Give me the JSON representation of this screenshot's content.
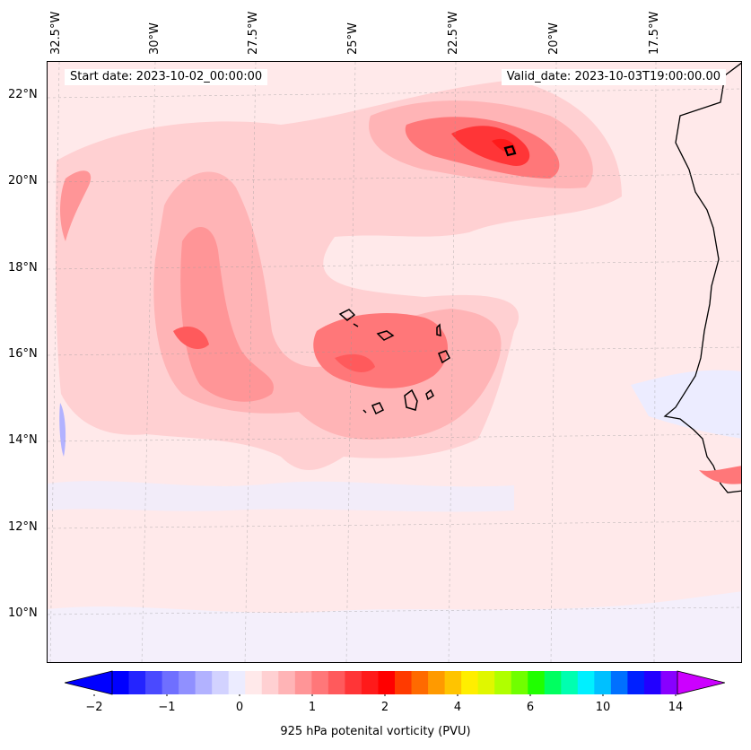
{
  "map": {
    "projection": "regional lat-lon",
    "longitude_labels": [
      "32.5°W",
      "30°W",
      "27.5°W",
      "25°W",
      "22.5°W",
      "20°W",
      "17.5°W"
    ],
    "latitude_labels": [
      "22°N",
      "20°N",
      "18°N",
      "16°N",
      "14°N",
      "12°N",
      "10°N"
    ],
    "gridlines": true,
    "start_date_text": "Start date: 2023-10-02_00:00:00",
    "valid_date_text": "Valid_date: 2023-10-03T19:00:00.00",
    "field": "925 hPa potential vorticity",
    "features": [
      "Cape Verde islands",
      "West African coastline (Senegal, Gambia, Guinea-Bissau)"
    ],
    "background_level": "0 to 0.25 PVU (light pink)",
    "max_feature": "strong positive PV maximum near 20.7°N 21°W"
  },
  "colorbar": {
    "orientation": "horizontal",
    "extend": "both",
    "tick_labels": [
      "−2",
      "−1",
      "0",
      "1",
      "2",
      "4",
      "6",
      "10",
      "14"
    ],
    "colors": [
      "#0000ff",
      "#2424ff",
      "#4a4aff",
      "#6f6fff",
      "#9090ff",
      "#b2b2ff",
      "#d2d2ff",
      "#ececff",
      "#ffe9ea",
      "#ffd0d2",
      "#ffb4b6",
      "#ff9597",
      "#ff7779",
      "#ff5a5c",
      "#ff3537",
      "#ff1a1a",
      "#ff0000",
      "#ff3a00",
      "#ff6a00",
      "#ff9a00",
      "#ffc400",
      "#ffee00",
      "#e0f700",
      "#b0ff00",
      "#70ff00",
      "#20ff00",
      "#00ff60",
      "#00ffb0",
      "#00f0ff",
      "#00c0ff",
      "#0070ff",
      "#0020ff",
      "#2200ff",
      "#8800ff"
    ],
    "under_color": "#0000ff",
    "over_color": "#cc00ff",
    "title": "925 hPa potenital vorticity (PVU)"
  }
}
